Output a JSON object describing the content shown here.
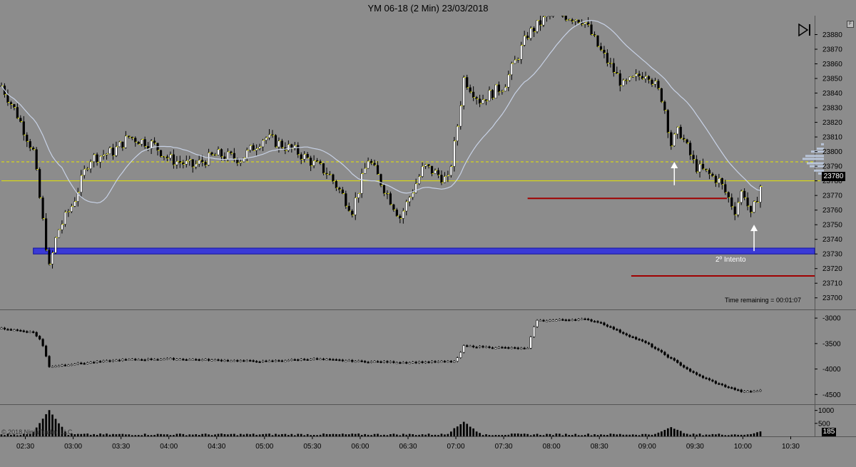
{
  "window": {
    "title": "YM 06-18 (2 Min)  23/03/2018"
  },
  "price_pane": {
    "current_price_label": "23780",
    "time_remaining_text": "Time remaining = 00:01:07",
    "annotation_text": "2º Intento",
    "y_ticks": [
      "23880",
      "23870",
      "23860",
      "23850",
      "23840",
      "23830",
      "23820",
      "23810",
      "23800",
      "23790",
      "23780",
      "23770",
      "23760",
      "23750",
      "23740",
      "23730",
      "23720",
      "23710",
      "23700"
    ]
  },
  "indicator_pane": {
    "y_ticks": [
      "-3000",
      "-3500",
      "-4000",
      "-4500"
    ]
  },
  "volume_pane": {
    "y_ticks": [
      "1000",
      "500"
    ],
    "current_volume_label": "185",
    "copyright_text": "© 2018 NinjaTrader, LLC"
  },
  "x_axis": {
    "ticks": [
      "02:30",
      "03:00",
      "03:30",
      "04:00",
      "04:30",
      "05:00",
      "05:30",
      "06:00",
      "06:30",
      "07:00",
      "07:30",
      "08:00",
      "08:30",
      "09:00",
      "09:30",
      "10:00",
      "10:30"
    ]
  },
  "colors": {
    "background": "#8c8c8c",
    "up_candle": "#ffffff",
    "down_candle": "#000000",
    "moving_average": "#c8d2e6",
    "support_zone": "#3a3ad6",
    "resistance_line": "#a00000",
    "dashed_level": "#e6e600"
  },
  "chart_data": {
    "type": "candlestick",
    "title": "YM 06-18 (2 Min)  23/03/2018",
    "ylim": [
      23695,
      23890
    ],
    "x_range": [
      "02:15",
      "10:45"
    ],
    "close_path": [
      {
        "t": "02:15",
        "v": 23845
      },
      {
        "t": "02:25",
        "v": 23825
      },
      {
        "t": "02:35",
        "v": 23800
      },
      {
        "t": "02:40",
        "v": 23760
      },
      {
        "t": "02:45",
        "v": 23720
      },
      {
        "t": "02:50",
        "v": 23745
      },
      {
        "t": "03:00",
        "v": 23765
      },
      {
        "t": "03:10",
        "v": 23795
      },
      {
        "t": "03:25",
        "v": 23800
      },
      {
        "t": "03:35",
        "v": 23810
      },
      {
        "t": "03:50",
        "v": 23805
      },
      {
        "t": "04:00",
        "v": 23795
      },
      {
        "t": "04:15",
        "v": 23790
      },
      {
        "t": "04:30",
        "v": 23798
      },
      {
        "t": "04:45",
        "v": 23795
      },
      {
        "t": "05:00",
        "v": 23810
      },
      {
        "t": "05:20",
        "v": 23800
      },
      {
        "t": "05:40",
        "v": 23785
      },
      {
        "t": "05:55",
        "v": 23760
      },
      {
        "t": "06:05",
        "v": 23795
      },
      {
        "t": "06:15",
        "v": 23775
      },
      {
        "t": "06:25",
        "v": 23755
      },
      {
        "t": "06:40",
        "v": 23790
      },
      {
        "t": "06:55",
        "v": 23780
      },
      {
        "t": "07:00",
        "v": 23810
      },
      {
        "t": "07:05",
        "v": 23850
      },
      {
        "t": "07:15",
        "v": 23835
      },
      {
        "t": "07:30",
        "v": 23845
      },
      {
        "t": "07:45",
        "v": 23880
      },
      {
        "t": "08:00",
        "v": 23895
      },
      {
        "t": "08:20",
        "v": 23890
      },
      {
        "t": "08:30",
        "v": 23870
      },
      {
        "t": "08:45",
        "v": 23845
      },
      {
        "t": "09:00",
        "v": 23855
      },
      {
        "t": "09:10",
        "v": 23835
      },
      {
        "t": "09:15",
        "v": 23805
      },
      {
        "t": "09:20",
        "v": 23815
      },
      {
        "t": "09:30",
        "v": 23790
      },
      {
        "t": "09:45",
        "v": 23780
      },
      {
        "t": "09:55",
        "v": 23760
      },
      {
        "t": "10:00",
        "v": 23775
      },
      {
        "t": "10:05",
        "v": 23755
      },
      {
        "t": "10:12",
        "v": 23780
      }
    ],
    "levels": {
      "support_zone": [
        23730,
        23734
      ],
      "resistance_lines": [
        {
          "from": "07:45",
          "to": "09:50",
          "value": 23768
        },
        {
          "from": "08:50",
          "to": "10:45",
          "value": 23715
        }
      ],
      "dashed_level": 23793,
      "current_price": 23780
    },
    "annotations": [
      {
        "text": "2º Intento",
        "t": "10:00",
        "price": 23722
      }
    ],
    "indicator": {
      "ylim": [
        -4650,
        -2900
      ],
      "path": [
        {
          "t": "02:15",
          "v": -3200
        },
        {
          "t": "02:35",
          "v": -3280
        },
        {
          "t": "02:40",
          "v": -3450
        },
        {
          "t": "02:45",
          "v": -3950
        },
        {
          "t": "03:00",
          "v": -3900
        },
        {
          "t": "03:30",
          "v": -3820
        },
        {
          "t": "04:00",
          "v": -3800
        },
        {
          "t": "05:00",
          "v": -3850
        },
        {
          "t": "05:30",
          "v": -3800
        },
        {
          "t": "06:00",
          "v": -3850
        },
        {
          "t": "06:30",
          "v": -3870
        },
        {
          "t": "07:00",
          "v": -3850
        },
        {
          "t": "07:05",
          "v": -3550
        },
        {
          "t": "07:45",
          "v": -3600
        },
        {
          "t": "07:50",
          "v": -3050
        },
        {
          "t": "08:20",
          "v": -3020
        },
        {
          "t": "08:30",
          "v": -3080
        },
        {
          "t": "08:45",
          "v": -3300
        },
        {
          "t": "09:00",
          "v": -3500
        },
        {
          "t": "09:15",
          "v": -3800
        },
        {
          "t": "09:30",
          "v": -4100
        },
        {
          "t": "09:45",
          "v": -4300
        },
        {
          "t": "10:00",
          "v": -4450
        },
        {
          "t": "10:12",
          "v": -4420
        }
      ]
    },
    "volume": {
      "ylim": [
        0,
        1100
      ],
      "peaks": [
        {
          "t": "02:45",
          "v": 1000
        },
        {
          "t": "07:05",
          "v": 550
        },
        {
          "t": "09:15",
          "v": 350
        },
        {
          "t": "10:12",
          "v": 185
        }
      ]
    }
  }
}
